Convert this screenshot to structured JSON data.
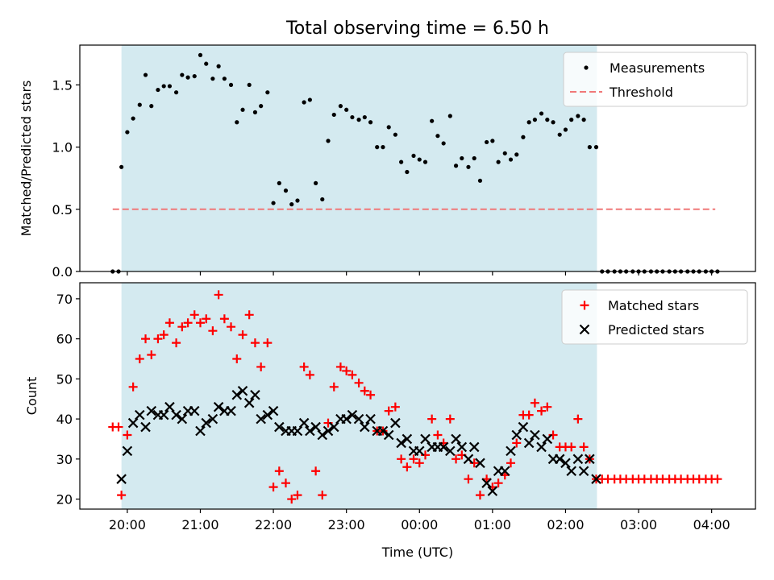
{
  "figure": {
    "title": "Total observing time = 6.50 h",
    "xlabel": "Time (UTC)"
  },
  "colors": {
    "observing_band": "#d4eaf0",
    "measurements": "#000000",
    "threshold": "#f07878",
    "matched": "#ff0000",
    "predicted": "#000000"
  },
  "chart_data": [
    {
      "type": "scatter",
      "panel": "top",
      "title": "Total observing time = 6.50 h",
      "xlabel": "",
      "ylabel": "Matched/Predicted stars",
      "x_unit": "hours since 00:00 UTC (values >24 are after midnight)",
      "xlim": [
        19.35,
        28.6
      ],
      "ylim": [
        0,
        1.82
      ],
      "yticks": [
        0.0,
        0.5,
        1.0,
        1.5
      ],
      "ytick_labels": [
        "0.0",
        "0.5",
        "1.0",
        "1.5"
      ],
      "xticks": [
        20,
        21,
        22,
        23,
        24,
        25,
        26,
        27,
        28
      ],
      "xtick_labels": [
        "",
        "",
        "",
        "",
        "",
        "",
        "",
        "",
        ""
      ],
      "shaded_span": [
        19.92,
        26.43
      ],
      "legend": {
        "position": "upper right",
        "entries": [
          "Measurements",
          "Threshold"
        ]
      },
      "threshold": {
        "name": "Threshold",
        "y": 0.5,
        "x_range": [
          19.8,
          28.05
        ]
      },
      "series": [
        {
          "name": "Measurements",
          "marker": "dot",
          "x": [
            19.8,
            19.88,
            19.92,
            20.0,
            20.08,
            20.17,
            20.25,
            20.33,
            20.42,
            20.5,
            20.58,
            20.67,
            20.75,
            20.83,
            20.92,
            21.0,
            21.08,
            21.17,
            21.25,
            21.33,
            21.42,
            21.5,
            21.58,
            21.67,
            21.75,
            21.83,
            21.92,
            22.0,
            22.08,
            22.17,
            22.25,
            22.33,
            22.42,
            22.5,
            22.58,
            22.67,
            22.75,
            22.83,
            22.92,
            23.0,
            23.08,
            23.17,
            23.25,
            23.33,
            23.42,
            23.5,
            23.58,
            23.67,
            23.75,
            23.83,
            23.92,
            24.0,
            24.08,
            24.17,
            24.25,
            24.33,
            24.42,
            24.5,
            24.58,
            24.67,
            24.75,
            24.83,
            24.92,
            25.0,
            25.08,
            25.17,
            25.25,
            25.33,
            25.42,
            25.5,
            25.58,
            25.67,
            25.75,
            25.83,
            25.92,
            26.0,
            26.08,
            26.17,
            26.25,
            26.33,
            26.42,
            26.5,
            26.58,
            26.67,
            26.75,
            26.83,
            26.92,
            27.0,
            27.08,
            27.17,
            27.25,
            27.33,
            27.42,
            27.5,
            27.58,
            27.67,
            27.75,
            27.83,
            27.92,
            28.0,
            28.08
          ],
          "y": [
            0,
            0,
            0.84,
            1.12,
            1.23,
            1.34,
            1.58,
            1.33,
            1.46,
            1.49,
            1.49,
            1.44,
            1.58,
            1.56,
            1.57,
            1.74,
            1.67,
            1.55,
            1.65,
            1.55,
            1.5,
            1.2,
            1.3,
            1.5,
            1.28,
            1.33,
            1.44,
            0.55,
            0.71,
            0.65,
            0.54,
            0.57,
            1.36,
            1.38,
            0.71,
            0.58,
            1.05,
            1.26,
            1.33,
            1.3,
            1.24,
            1.22,
            1.24,
            1.2,
            1.0,
            1.0,
            1.16,
            1.1,
            0.88,
            0.8,
            0.93,
            0.9,
            0.88,
            1.21,
            1.09,
            1.03,
            1.25,
            0.85,
            0.91,
            0.84,
            0.91,
            0.73,
            1.04,
            1.05,
            0.88,
            0.95,
            0.9,
            0.94,
            1.08,
            1.2,
            1.22,
            1.27,
            1.22,
            1.2,
            1.1,
            1.14,
            1.22,
            1.25,
            1.22,
            1.0,
            1.0,
            0,
            0,
            0,
            0,
            0,
            0,
            0,
            0,
            0,
            0,
            0,
            0,
            0,
            0,
            0,
            0,
            0,
            0,
            0,
            0
          ]
        }
      ]
    },
    {
      "type": "scatter",
      "panel": "bottom",
      "xlabel": "Time (UTC)",
      "ylabel": "Count",
      "x_unit": "hours since 00:00 UTC (values >24 are after midnight)",
      "xlim": [
        19.35,
        28.6
      ],
      "ylim": [
        17.5,
        74
      ],
      "yticks": [
        20,
        30,
        40,
        50,
        60,
        70
      ],
      "ytick_labels": [
        "20",
        "30",
        "40",
        "50",
        "60",
        "70"
      ],
      "xticks": [
        20,
        21,
        22,
        23,
        24,
        25,
        26,
        27,
        28
      ],
      "xtick_labels": [
        "20:00",
        "21:00",
        "22:00",
        "23:00",
        "00:00",
        "01:00",
        "02:00",
        "03:00",
        "04:00"
      ],
      "shaded_span": [
        19.92,
        26.43
      ],
      "legend": {
        "position": "upper right",
        "entries": [
          "Matched stars",
          "Predicted stars"
        ]
      },
      "series": [
        {
          "name": "Matched stars",
          "marker": "plus",
          "x": [
            19.8,
            19.88,
            19.92,
            20.0,
            20.08,
            20.17,
            20.25,
            20.33,
            20.42,
            20.5,
            20.58,
            20.67,
            20.75,
            20.83,
            20.92,
            21.0,
            21.08,
            21.17,
            21.25,
            21.33,
            21.42,
            21.5,
            21.58,
            21.67,
            21.75,
            21.83,
            21.92,
            22.0,
            22.08,
            22.17,
            22.25,
            22.33,
            22.42,
            22.5,
            22.58,
            22.67,
            22.75,
            22.83,
            22.92,
            23.0,
            23.08,
            23.17,
            23.25,
            23.33,
            23.42,
            23.5,
            23.58,
            23.67,
            23.75,
            23.83,
            23.92,
            24.0,
            24.08,
            24.17,
            24.25,
            24.33,
            24.42,
            24.5,
            24.58,
            24.67,
            24.75,
            24.83,
            24.92,
            25.0,
            25.08,
            25.17,
            25.25,
            25.33,
            25.42,
            25.5,
            25.58,
            25.67,
            25.75,
            25.83,
            25.92,
            26.0,
            26.08,
            26.17,
            26.25,
            26.33,
            26.42,
            26.5,
            26.58,
            26.67,
            26.75,
            26.83,
            26.92,
            27.0,
            27.08,
            27.17,
            27.25,
            27.33,
            27.42,
            27.5,
            27.58,
            27.67,
            27.75,
            27.83,
            27.92,
            28.0,
            28.08
          ],
          "y": [
            38,
            38,
            21,
            36,
            48,
            55,
            60,
            56,
            60,
            61,
            64,
            59,
            63,
            64,
            66,
            64,
            65,
            62,
            71,
            65,
            63,
            55,
            61,
            66,
            59,
            53,
            59,
            23,
            27,
            24,
            20,
            21,
            53,
            51,
            27,
            21,
            39,
            48,
            53,
            52,
            51,
            49,
            47,
            46,
            37,
            37,
            42,
            43,
            30,
            28,
            30,
            29,
            31,
            40,
            36,
            34,
            40,
            30,
            31,
            25,
            29,
            21,
            25,
            23,
            24,
            26,
            29,
            34,
            41,
            41,
            44,
            42,
            43,
            36,
            33,
            33,
            33,
            40,
            33,
            30,
            25,
            25,
            25,
            25,
            25,
            25,
            25,
            25,
            25,
            25,
            25,
            25,
            25,
            25,
            25,
            25,
            25,
            25,
            25,
            25,
            25
          ]
        },
        {
          "name": "Predicted stars",
          "marker": "x",
          "x": [
            19.92,
            20.0,
            20.08,
            20.17,
            20.25,
            20.33,
            20.42,
            20.5,
            20.58,
            20.67,
            20.75,
            20.83,
            20.92,
            21.0,
            21.08,
            21.17,
            21.25,
            21.33,
            21.42,
            21.5,
            21.58,
            21.67,
            21.75,
            21.83,
            21.92,
            22.0,
            22.08,
            22.17,
            22.25,
            22.33,
            22.42,
            22.5,
            22.58,
            22.67,
            22.75,
            22.83,
            22.92,
            23.0,
            23.08,
            23.17,
            23.25,
            23.33,
            23.42,
            23.5,
            23.58,
            23.67,
            23.75,
            23.83,
            23.92,
            24.0,
            24.08,
            24.17,
            24.25,
            24.33,
            24.42,
            24.5,
            24.58,
            24.67,
            24.75,
            24.83,
            24.92,
            25.0,
            25.08,
            25.17,
            25.25,
            25.33,
            25.42,
            25.5,
            25.58,
            25.67,
            25.75,
            25.83,
            25.92,
            26.0,
            26.08,
            26.17,
            26.25,
            26.33,
            26.42
          ],
          "y": [
            25,
            32,
            39,
            41,
            38,
            42,
            41,
            41,
            43,
            41,
            40,
            42,
            42,
            37,
            39,
            40,
            43,
            42,
            42,
            46,
            47,
            44,
            46,
            40,
            41,
            42,
            38,
            37,
            37,
            37,
            39,
            37,
            38,
            36,
            37,
            38,
            40,
            40,
            41,
            40,
            38,
            40,
            37,
            37,
            36,
            39,
            34,
            35,
            32,
            32,
            35,
            33,
            33,
            33,
            32,
            35,
            33,
            30,
            33,
            29,
            24,
            22,
            27,
            27,
            32,
            36,
            38,
            34,
            36,
            33,
            35,
            30,
            30,
            29,
            27,
            30,
            27,
            30,
            25
          ]
        }
      ]
    }
  ]
}
